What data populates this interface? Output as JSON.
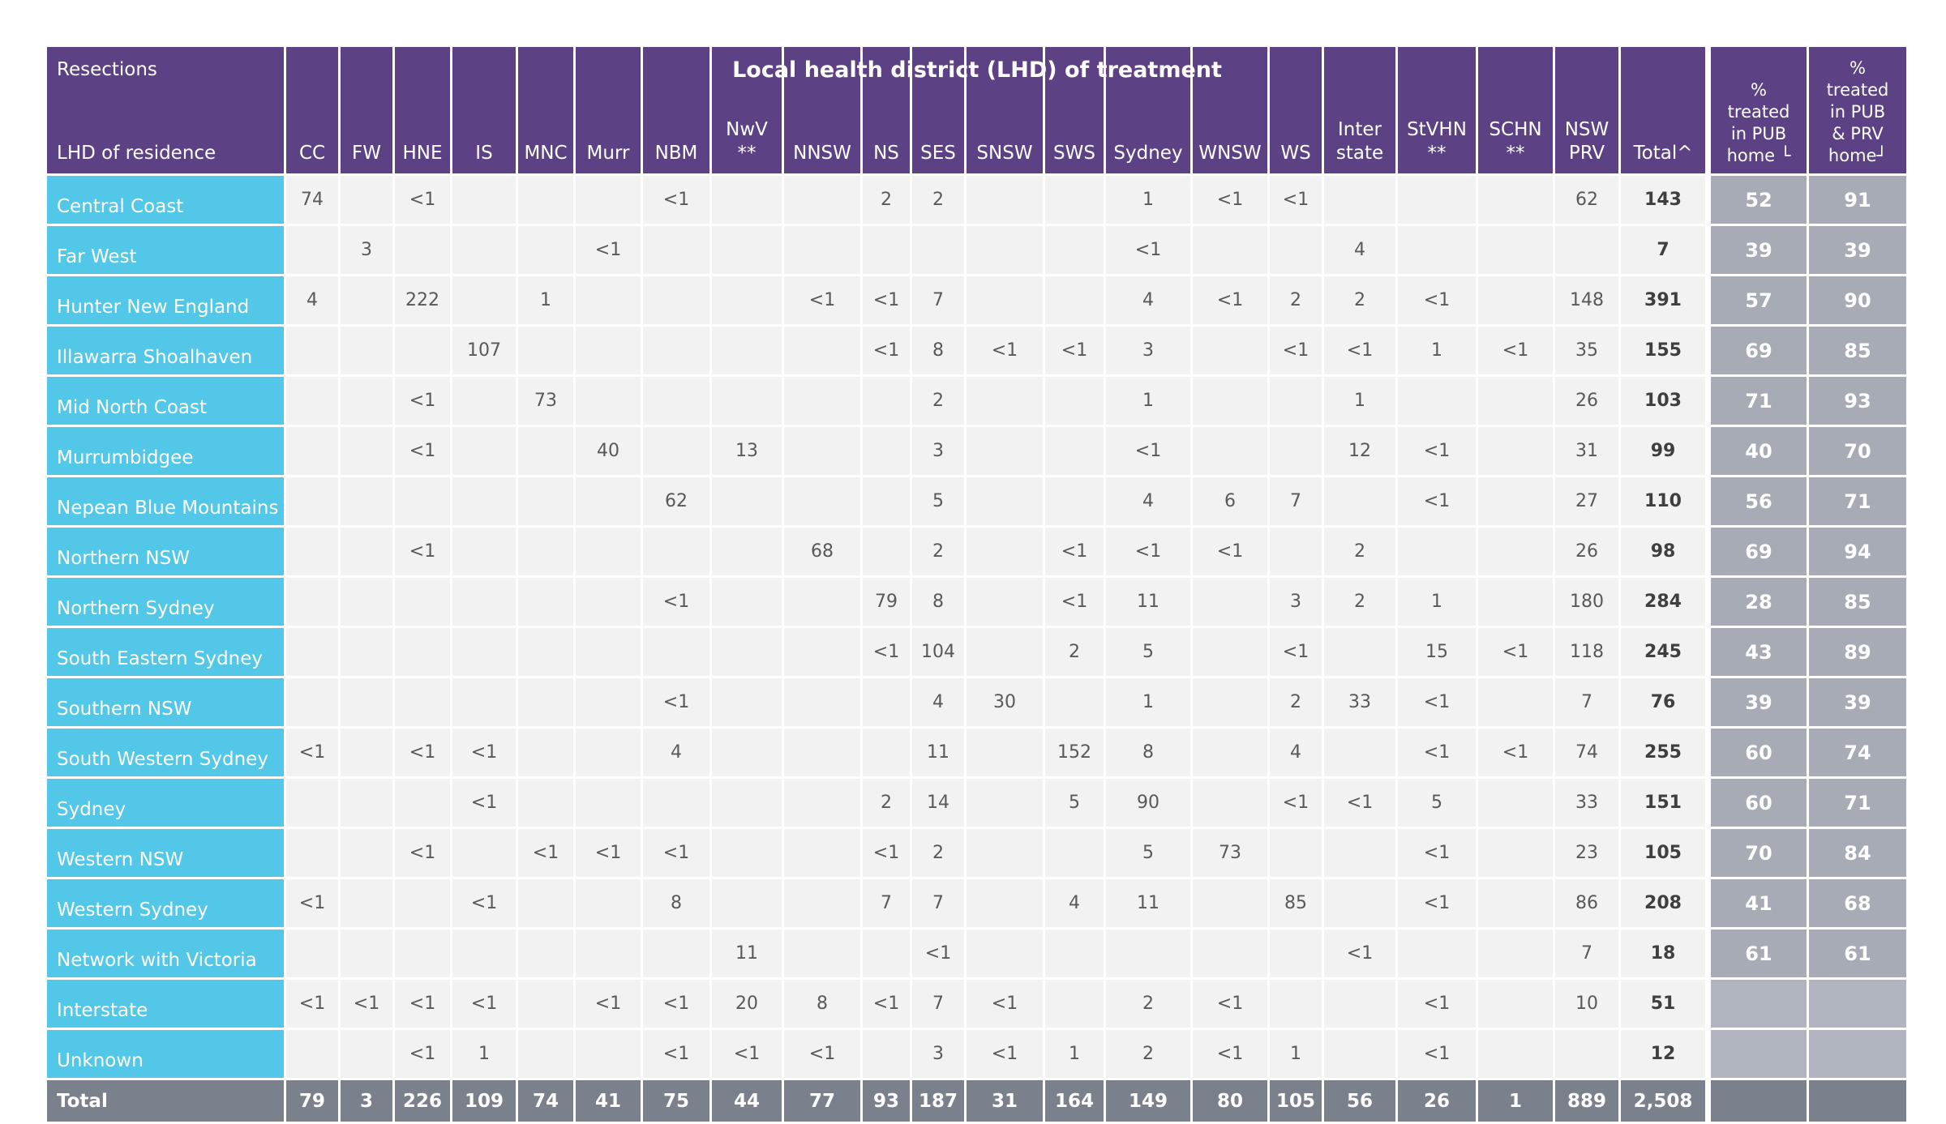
{
  "header": {
    "corner_top": "Resections",
    "corner_bottom": "LHD of residence",
    "span_title": "Local health district (LHD) of treatment",
    "total_row_label": "Total"
  },
  "colors": {
    "header_purple": "#5C4285",
    "row_label_cyan": "#53C7E8",
    "cell_background": "#F2F2F2",
    "total_row_gray": "#7A808C",
    "pct_cell_gray": "#A6ABB5",
    "pct_empty_gray": "#AFB4BE",
    "data_text_gray": "#595959"
  },
  "chart_data": {
    "type": "table",
    "title": "Resections — LHD of residence by Local health district (LHD) of treatment",
    "columns": [
      "CC",
      "FW",
      "HNE",
      "IS",
      "MNC",
      "Murr",
      "NBM",
      "NwV\n**",
      "NNSW",
      "NS",
      "SES",
      "SNSW",
      "SWS",
      "Sydney",
      "WNSW",
      "WS",
      "Inter\nstate",
      "StVHN\n**",
      "SCHN\n**",
      "NSW\nPRV",
      "Total^"
    ],
    "pct_columns": [
      "%\ntreated\nin PUB\nhome └",
      "%\ntreated\nin PUB\n& PRV\nhome┘"
    ],
    "rows": [
      {
        "label": "Central Coast",
        "values": [
          "74",
          "",
          "<1",
          "",
          "",
          "",
          "<1",
          "",
          "",
          "2",
          "2",
          "",
          "",
          "1",
          "<1",
          "<1",
          "",
          "",
          "",
          "62",
          "143"
        ],
        "pct": [
          "52",
          "91"
        ]
      },
      {
        "label": "Far West",
        "values": [
          "",
          "3",
          "",
          "",
          "",
          "<1",
          "",
          "",
          "",
          "",
          "",
          "",
          "",
          "<1",
          "",
          "",
          "4",
          "",
          "",
          "",
          "7"
        ],
        "pct": [
          "39",
          "39"
        ]
      },
      {
        "label": "Hunter New England",
        "values": [
          "4",
          "",
          "222",
          "",
          "1",
          "",
          "",
          "",
          "<1",
          "<1",
          "7",
          "",
          "",
          "4",
          "<1",
          "2",
          "2",
          "<1",
          "",
          "148",
          "391"
        ],
        "pct": [
          "57",
          "90"
        ]
      },
      {
        "label": "Illawarra Shoalhaven",
        "values": [
          "",
          "",
          "",
          "107",
          "",
          "",
          "",
          "",
          "",
          "<1",
          "8",
          "<1",
          "<1",
          "3",
          "",
          "<1",
          "<1",
          "1",
          "<1",
          "35",
          "155"
        ],
        "pct": [
          "69",
          "85"
        ]
      },
      {
        "label": "Mid North Coast",
        "values": [
          "",
          "",
          "<1",
          "",
          "73",
          "",
          "",
          "",
          "",
          "",
          "2",
          "",
          "",
          "1",
          "",
          "",
          "1",
          "",
          "",
          "26",
          "103"
        ],
        "pct": [
          "71",
          "93"
        ]
      },
      {
        "label": "Murrumbidgee",
        "values": [
          "",
          "",
          "<1",
          "",
          "",
          "40",
          "",
          "13",
          "",
          "",
          "3",
          "",
          "",
          "<1",
          "",
          "",
          "12",
          "<1",
          "",
          "31",
          "99"
        ],
        "pct": [
          "40",
          "70"
        ]
      },
      {
        "label": "Nepean Blue Mountains",
        "values": [
          "",
          "",
          "",
          "",
          "",
          "",
          "62",
          "",
          "",
          "",
          "5",
          "",
          "",
          "4",
          "6",
          "7",
          "",
          "<1",
          "",
          "27",
          "110"
        ],
        "pct": [
          "56",
          "71"
        ]
      },
      {
        "label": "Northern NSW",
        "values": [
          "",
          "",
          "<1",
          "",
          "",
          "",
          "",
          "",
          "68",
          "",
          "2",
          "",
          "<1",
          "<1",
          "<1",
          "",
          "2",
          "",
          "",
          "26",
          "98"
        ],
        "pct": [
          "69",
          "94"
        ]
      },
      {
        "label": "Northern Sydney",
        "values": [
          "",
          "",
          "",
          "",
          "",
          "",
          "<1",
          "",
          "",
          "79",
          "8",
          "",
          "<1",
          "11",
          "",
          "3",
          "2",
          "1",
          "",
          "180",
          "284"
        ],
        "pct": [
          "28",
          "85"
        ]
      },
      {
        "label": "South Eastern Sydney",
        "values": [
          "",
          "",
          "",
          "",
          "",
          "",
          "",
          "",
          "",
          "<1",
          "104",
          "",
          "2",
          "5",
          "",
          "<1",
          "",
          "15",
          "<1",
          "118",
          "245"
        ],
        "pct": [
          "43",
          "89"
        ]
      },
      {
        "label": "Southern NSW",
        "values": [
          "",
          "",
          "",
          "",
          "",
          "",
          "<1",
          "",
          "",
          "",
          "4",
          "30",
          "",
          "1",
          "",
          "2",
          "33",
          "<1",
          "",
          "7",
          "76"
        ],
        "pct": [
          "39",
          "39"
        ]
      },
      {
        "label": "South Western Sydney",
        "values": [
          "<1",
          "",
          "<1",
          "<1",
          "",
          "",
          "4",
          "",
          "",
          "",
          "11",
          "",
          "152",
          "8",
          "",
          "4",
          "",
          "<1",
          "<1",
          "74",
          "255"
        ],
        "pct": [
          "60",
          "74"
        ]
      },
      {
        "label": "Sydney",
        "values": [
          "",
          "",
          "",
          "<1",
          "",
          "",
          "",
          "",
          "",
          "2",
          "14",
          "",
          "5",
          "90",
          "",
          "<1",
          "<1",
          "5",
          "",
          "33",
          "151"
        ],
        "pct": [
          "60",
          "71"
        ]
      },
      {
        "label": "Western NSW",
        "values": [
          "",
          "",
          "<1",
          "",
          "<1",
          "<1",
          "<1",
          "",
          "",
          "<1",
          "2",
          "",
          "",
          "5",
          "73",
          "",
          "",
          "<1",
          "",
          "23",
          "105"
        ],
        "pct": [
          "70",
          "84"
        ]
      },
      {
        "label": "Western Sydney",
        "values": [
          "<1",
          "",
          "",
          "<1",
          "",
          "",
          "8",
          "",
          "",
          "7",
          "7",
          "",
          "4",
          "11",
          "",
          "85",
          "",
          "<1",
          "",
          "86",
          "208"
        ],
        "pct": [
          "41",
          "68"
        ]
      },
      {
        "label": "Network with Victoria",
        "values": [
          "",
          "",
          "",
          "",
          "",
          "",
          "",
          "11",
          "",
          "",
          "<1",
          "",
          "",
          "",
          "",
          "",
          "<1",
          "",
          "",
          "7",
          "18"
        ],
        "pct": [
          "61",
          "61"
        ]
      },
      {
        "label": "Interstate",
        "values": [
          "<1",
          "<1",
          "<1",
          "<1",
          "",
          "<1",
          "<1",
          "20",
          "8",
          "<1",
          "7",
          "<1",
          "",
          "2",
          "<1",
          "",
          "",
          "<1",
          "",
          "10",
          "51"
        ],
        "pct": [
          "",
          ""
        ]
      },
      {
        "label": "Unknown",
        "values": [
          "",
          "",
          "<1",
          "1",
          "",
          "",
          "<1",
          "<1",
          "<1",
          "",
          "3",
          "<1",
          "1",
          "2",
          "<1",
          "1",
          "",
          "<1",
          "",
          "",
          "12"
        ],
        "pct": [
          "",
          ""
        ]
      }
    ],
    "total_row": {
      "label": "Total",
      "values": [
        "79",
        "3",
        "226",
        "109",
        "74",
        "41",
        "75",
        "44",
        "77",
        "93",
        "187",
        "31",
        "164",
        "149",
        "80",
        "105",
        "56",
        "26",
        "1",
        "889",
        "2,508"
      ],
      "pct": [
        "",
        ""
      ]
    }
  }
}
